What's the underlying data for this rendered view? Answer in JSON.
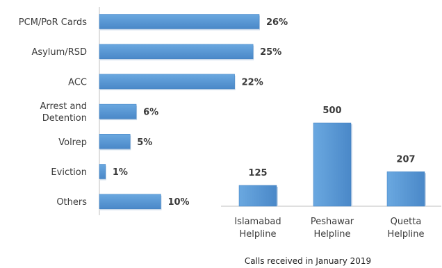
{
  "chart_data": [
    {
      "type": "bar",
      "orientation": "horizontal",
      "categories": [
        [
          "PCM/PoR Cards"
        ],
        [
          "Asylum/RSD"
        ],
        [
          "ACC"
        ],
        [
          "Arrest and",
          "Detention"
        ],
        [
          "Volrep"
        ],
        [
          "Eviction"
        ],
        [
          "Others"
        ]
      ],
      "values": [
        26,
        25,
        22,
        6,
        5,
        1,
        10
      ],
      "value_labels": [
        "26%",
        "25%",
        "22%",
        "6%",
        "5%",
        "1%",
        "10%"
      ],
      "xlim": [
        0,
        26
      ],
      "grid": false,
      "title": "",
      "xlabel": "",
      "ylabel": ""
    },
    {
      "type": "bar",
      "orientation": "vertical",
      "categories": [
        [
          "Islamabad",
          "Helpline"
        ],
        [
          "Peshawar",
          "Helpline"
        ],
        [
          "Quetta",
          "Helpline"
        ]
      ],
      "values": [
        125,
        500,
        207
      ],
      "value_labels": [
        "125",
        "500",
        "207"
      ],
      "ylim": [
        0,
        500
      ],
      "grid": false,
      "title": "",
      "xlabel": "",
      "ylabel": ""
    }
  ],
  "caption": "Calls received in January 2019",
  "colors": {
    "bar": "#5b9bd5",
    "bar_dark": "#3d7fc0",
    "axis": "#bfbfbf",
    "text": "#3a3a3a"
  }
}
